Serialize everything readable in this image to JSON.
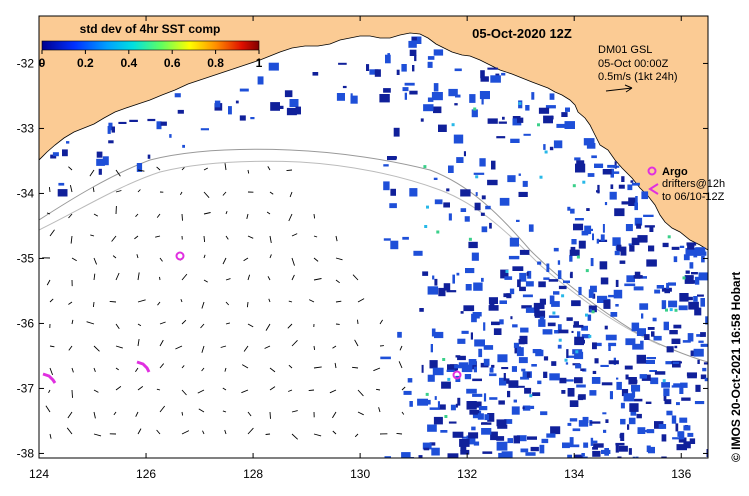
{
  "map": {
    "title": "05-Oct-2020 12Z",
    "colorbar": {
      "label": "std dev of 4hr SST comp",
      "ticks": [
        "0",
        "0.2",
        "0.4",
        "0.6",
        "0.8",
        "1"
      ],
      "colors": [
        "#00008f",
        "#0050ff",
        "#00c8ff",
        "#40ff80",
        "#ffff00",
        "#ff8000",
        "#c00000",
        "#800000"
      ]
    },
    "current_info": {
      "model": "DM01 GSL",
      "time": "05-Oct 00:00Z",
      "scale": "0.5m/s (1kt 24h)"
    },
    "legend": {
      "argo": "Argo",
      "drifters_line1": "drifters@12h",
      "drifters_line2": "to 06/10-12Z"
    },
    "credit": "© IMOS 20-Oct-2021 16:58 Hobart",
    "x_ticks": [
      "124",
      "126",
      "128",
      "130",
      "132",
      "134",
      "136"
    ],
    "y_ticks": [
      "-32",
      "-33",
      "-34",
      "-35",
      "-36",
      "-37",
      "-38"
    ],
    "colors": {
      "land": "#fbcb94",
      "ocean": "#ffffff",
      "sst_dark": "#10209a",
      "sst_mid": "#1e4fd8",
      "argo": "#e02fe0",
      "bathy": "#999999"
    }
  }
}
